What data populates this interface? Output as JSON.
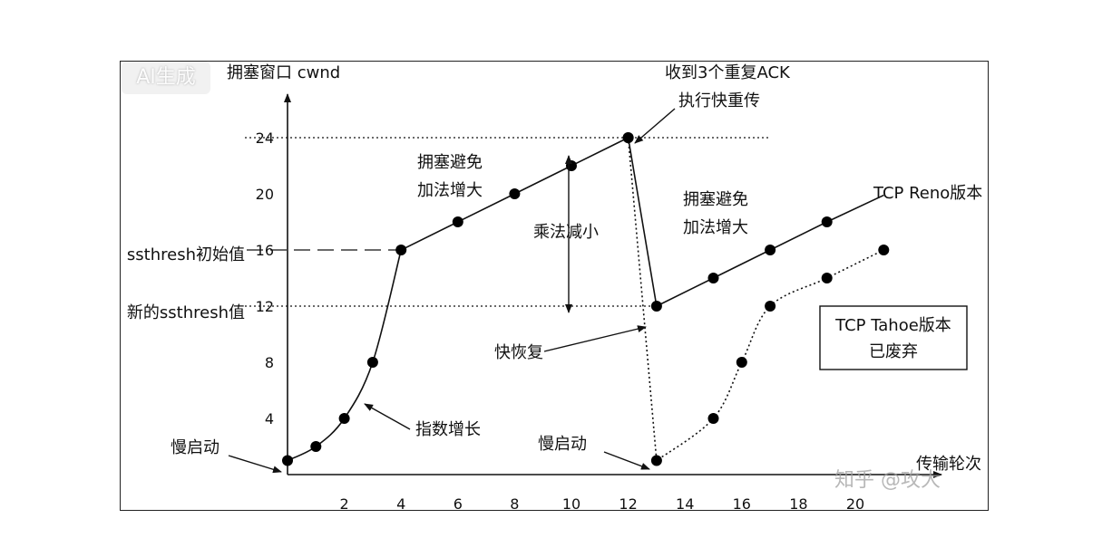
{
  "badge": {
    "text": "AI生成"
  },
  "watermark": {
    "text": "知乎 @攻大"
  },
  "annotations": {
    "ylabel": "拥塞窗口 cwnd",
    "xlabel": "传输轮次",
    "ssthresh_initial": "ssthresh初始值",
    "ssthresh_new": "新的ssthresh值",
    "ack_line1": "收到3个重复ACK",
    "ack_line2": "执行快重传",
    "ca1_line1": "拥塞避免",
    "ca1_line2": "加法增大",
    "ca2_line1": "拥塞避免",
    "ca2_line2": "加法增大",
    "mult_decrease": "乘法减小",
    "reno": "TCP Reno版本",
    "tahoe_line1": "TCP Tahoe版本",
    "tahoe_line2": "已废弃",
    "fast_recovery": "快恢复",
    "exp_growth": "指数增长",
    "slow_start1": "慢启动",
    "slow_start2": "慢启动"
  },
  "chart_data": {
    "type": "line",
    "title": "",
    "xlabel": "传输轮次",
    "ylabel": "拥塞窗口 cwnd",
    "xlim": [
      0,
      21
    ],
    "ylim": [
      0,
      24
    ],
    "xticks": [
      2,
      4,
      6,
      8,
      10,
      12,
      14,
      16,
      18,
      20
    ],
    "yticks": [
      4,
      8,
      12,
      16,
      20,
      24
    ],
    "reference_lines": [
      {
        "y": 24,
        "x_range": [
          0,
          17
        ],
        "style": "dotted"
      },
      {
        "y": 16,
        "x_range": [
          0,
          4
        ],
        "style": "dashed",
        "label": "ssthresh初始值"
      },
      {
        "y": 12,
        "x_range": [
          0,
          13
        ],
        "style": "dotted",
        "label": "新的ssthresh值"
      }
    ],
    "series": [
      {
        "name": "",
        "style": "solid",
        "points": [
          [
            0,
            1
          ],
          [
            1,
            2
          ],
          [
            2,
            4
          ],
          [
            3,
            8
          ],
          [
            4,
            16
          ],
          [
            6,
            18
          ],
          [
            8,
            20
          ],
          [
            10,
            22
          ],
          [
            12,
            24
          ],
          [
            13,
            12
          ],
          [
            15,
            14
          ],
          [
            17,
            16
          ],
          [
            19,
            18
          ]
        ],
        "line_extends_to": [
          21,
          19.9
        ]
      },
      {
        "name": "",
        "style": "dotted",
        "points": [
          [
            12,
            24
          ],
          [
            13,
            1
          ],
          [
            15,
            4
          ],
          [
            16,
            8
          ],
          [
            17,
            12
          ],
          [
            19,
            14
          ],
          [
            21,
            16
          ]
        ]
      }
    ]
  }
}
